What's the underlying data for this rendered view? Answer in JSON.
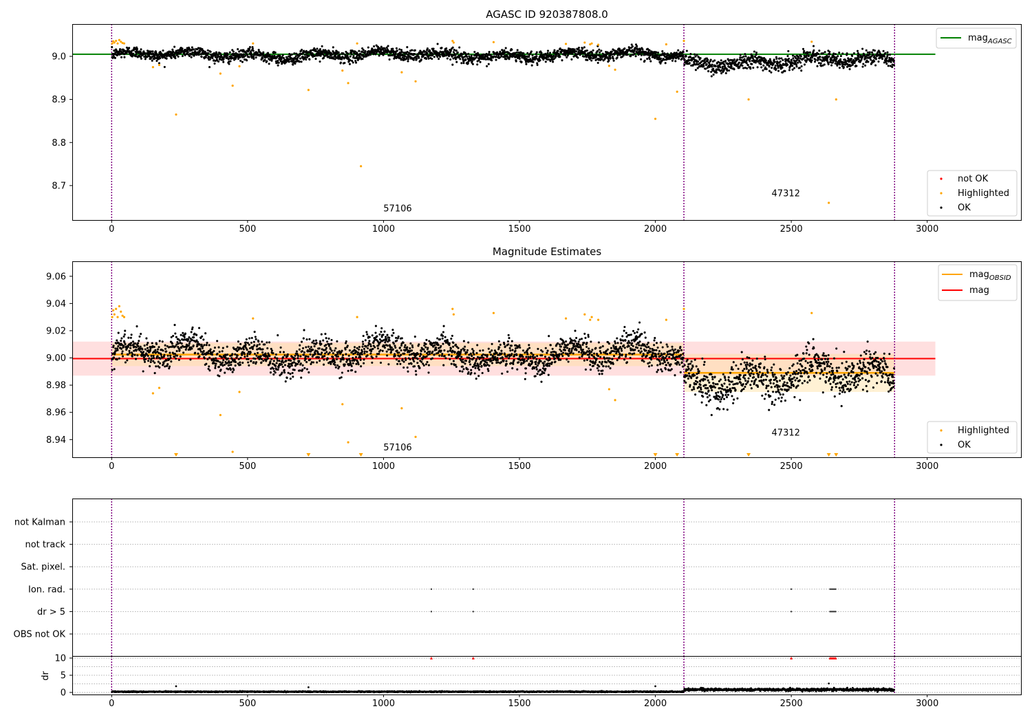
{
  "colors": {
    "ok": "#000000",
    "highlighted": "#ffa500",
    "not_ok": "#ff0000",
    "mag_agasc_line": "#008000",
    "mag_line": "#ff0000",
    "mag_obsid_line": "#ffa500",
    "obsid_boundary": "#800080",
    "mag_band": "#ffc0c0",
    "obsid_band": "#ffe0a0"
  },
  "chart_data": [
    {
      "type": "scatter",
      "title": "AGASC ID 920387808.0",
      "xlim": [
        -145,
        3345
      ],
      "ylim": [
        8.62,
        9.075
      ],
      "x_ticks": [
        0,
        500,
        1000,
        1500,
        2000,
        2500,
        3000
      ],
      "y_ticks": [
        8.7,
        8.8,
        8.9,
        9.0
      ],
      "y_tick_labels": [
        "8.7",
        "8.8",
        "8.9",
        "9.0"
      ],
      "legend_lines": [
        {
          "label": "mag",
          "subscript": "AGASC",
          "color": "#008000"
        }
      ],
      "legend_points": [
        {
          "label": "not OK",
          "color": "#ff0000"
        },
        {
          "label": "Highlighted",
          "color": "#ffa500"
        },
        {
          "label": "OK",
          "color": "#000000"
        }
      ],
      "mag_agasc": 9.005,
      "mag_agasc_x_range": [
        -145,
        3030
      ],
      "obsid_boundaries": [
        0,
        2105,
        2880
      ],
      "obsid_labels": [
        {
          "text": "57106",
          "x": 1052,
          "y": 8.64
        },
        {
          "text": "47312",
          "x": 2480,
          "y": 8.675
        }
      ],
      "ok_segments": [
        {
          "x_start": 0,
          "x_end": 2105,
          "mean": 9.003,
          "spread": 0.012
        },
        {
          "x_start": 2105,
          "x_end": 2880,
          "mean": 8.989,
          "spread": 0.016
        }
      ],
      "highlighted_points": [
        [
          2,
          9.03
        ],
        [
          6,
          9.035
        ],
        [
          10,
          9.032
        ],
        [
          16,
          9.036
        ],
        [
          22,
          9.03
        ],
        [
          28,
          9.038
        ],
        [
          34,
          9.034
        ],
        [
          40,
          9.031
        ],
        [
          46,
          9.03
        ],
        [
          152,
          8.975
        ],
        [
          175,
          8.98
        ],
        [
          237,
          8.865
        ],
        [
          400,
          8.96
        ],
        [
          445,
          8.932
        ],
        [
          470,
          8.977
        ],
        [
          520,
          9.03
        ],
        [
          724,
          8.922
        ],
        [
          849,
          8.967
        ],
        [
          870,
          8.938
        ],
        [
          903,
          9.03
        ],
        [
          917,
          8.745
        ],
        [
          1067,
          8.963
        ],
        [
          1118,
          8.942
        ],
        [
          1254,
          9.036
        ],
        [
          1258,
          9.032
        ],
        [
          1405,
          9.033
        ],
        [
          1671,
          9.029
        ],
        [
          1740,
          9.032
        ],
        [
          1760,
          9.028
        ],
        [
          1766,
          9.03
        ],
        [
          1790,
          9.027
        ],
        [
          1830,
          8.978
        ],
        [
          1852,
          8.969
        ],
        [
          2000,
          8.855
        ],
        [
          2040,
          9.028
        ],
        [
          2080,
          8.918
        ],
        [
          2105,
          9.036
        ],
        [
          2343,
          8.9
        ],
        [
          2575,
          9.034
        ],
        [
          2638,
          8.66
        ],
        [
          2665,
          8.9
        ]
      ]
    },
    {
      "type": "scatter",
      "title": "Magnitude Estimates",
      "xlim": [
        -145,
        3345
      ],
      "ylim": [
        8.927,
        9.071
      ],
      "x_ticks": [
        0,
        500,
        1000,
        1500,
        2000,
        2500,
        3000
      ],
      "y_ticks": [
        8.94,
        8.96,
        8.98,
        9.0,
        9.02,
        9.04,
        9.06
      ],
      "y_tick_labels": [
        "8.94",
        "8.96",
        "8.98",
        "9.00",
        "9.02",
        "9.04",
        "9.06"
      ],
      "legend_lines": [
        {
          "label": "mag",
          "subscript": "OBSID",
          "color": "#ffa500"
        },
        {
          "label": "mag",
          "subscript": "",
          "color": "#ff0000"
        }
      ],
      "legend_points": [
        {
          "label": "Highlighted",
          "color": "#ffa500"
        },
        {
          "label": "OK",
          "color": "#000000"
        }
      ],
      "mag": 8.9995,
      "mag_x_range": [
        -145,
        3030
      ],
      "mag_band": [
        8.987,
        9.012
      ],
      "mag_obsid": [
        {
          "x_start": 0,
          "x_end": 2105,
          "value": 9.0025,
          "band": [
            8.994,
            9.011
          ]
        },
        {
          "x_start": 2105,
          "x_end": 2880,
          "value": 8.989,
          "band": [
            8.975,
            9.003
          ]
        }
      ],
      "obsid_boundaries": [
        0,
        2105,
        2880
      ],
      "obsid_labels": [
        {
          "text": "57106",
          "x": 1052,
          "y": 8.932
        },
        {
          "text": "47312",
          "x": 2480,
          "y": 8.943
        }
      ],
      "ok_segments": [
        {
          "x_start": 0,
          "x_end": 2105,
          "mean": 9.003,
          "spread": 0.01
        },
        {
          "x_start": 2105,
          "x_end": 2880,
          "mean": 8.986,
          "spread": 0.013
        }
      ],
      "highlighted_points": [
        [
          2,
          9.03
        ],
        [
          6,
          9.035
        ],
        [
          10,
          9.032
        ],
        [
          16,
          9.036
        ],
        [
          22,
          9.03
        ],
        [
          28,
          9.038
        ],
        [
          34,
          9.034
        ],
        [
          40,
          9.031
        ],
        [
          46,
          9.03
        ],
        [
          152,
          8.974
        ],
        [
          175,
          8.978
        ],
        [
          400,
          8.958
        ],
        [
          445,
          8.931
        ],
        [
          470,
          8.975
        ],
        [
          520,
          9.029
        ],
        [
          849,
          8.966
        ],
        [
          870,
          8.938
        ],
        [
          903,
          9.03
        ],
        [
          1067,
          8.963
        ],
        [
          1118,
          8.942
        ],
        [
          1254,
          9.036
        ],
        [
          1258,
          9.032
        ],
        [
          1405,
          9.033
        ],
        [
          1671,
          9.029
        ],
        [
          1740,
          9.032
        ],
        [
          1760,
          9.028
        ],
        [
          1766,
          9.03
        ],
        [
          1790,
          9.028
        ],
        [
          1830,
          8.977
        ],
        [
          1852,
          8.969
        ],
        [
          2040,
          9.028
        ],
        [
          2105,
          9.036
        ],
        [
          2575,
          9.033
        ]
      ],
      "out_of_range_markers_x": [
        237,
        724,
        917,
        2000,
        2080,
        2343,
        2638,
        2665
      ]
    },
    {
      "type": "scatter",
      "title": "",
      "xlim": [
        -145,
        3345
      ],
      "categories": [
        "not Kalman",
        "not track",
        "Sat. pixel.",
        "Ion. rad.",
        "dr > 5",
        "OBS not OK"
      ],
      "obsid_boundaries": [
        0,
        2105,
        2880
      ],
      "flag_points": {
        "Ion. rad.": [
          1176,
          1330,
          2500,
          2643,
          2648,
          2653,
          2658,
          2663
        ],
        "dr > 5": [
          1176,
          1330,
          2500,
          2643,
          2648,
          2653,
          2658,
          2663
        ]
      }
    },
    {
      "type": "scatter",
      "title": "",
      "xlim": [
        -145,
        3345
      ],
      "ylim": [
        -0.6,
        10.6
      ],
      "ylabel": "dr",
      "x_ticks": [
        0,
        500,
        1000,
        1500,
        2000,
        2500,
        3000
      ],
      "y_ticks": [
        0,
        5,
        10
      ],
      "y_tick_labels": [
        "0",
        "5",
        "10"
      ],
      "obsid_boundaries": [
        0,
        2105,
        2880
      ],
      "segments": [
        {
          "x_start": 0,
          "x_end": 2105,
          "mean": 0.2,
          "spread": 0.12
        },
        {
          "x_start": 2105,
          "x_end": 2880,
          "mean": 0.8,
          "spread": 0.3
        }
      ],
      "outliers": [
        [
          237,
          1.8
        ],
        [
          724,
          1.5
        ],
        [
          2000,
          1.8
        ],
        [
          2638,
          2.6
        ]
      ],
      "clipped_markers_x": [
        1176,
        1330,
        2500,
        2643,
        2648,
        2653,
        2658,
        2663
      ]
    }
  ]
}
